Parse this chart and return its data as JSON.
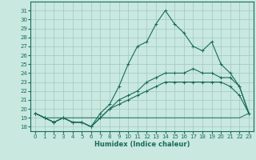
{
  "title": "",
  "xlabel": "Humidex (Indice chaleur)",
  "x": [
    0,
    1,
    2,
    3,
    4,
    5,
    6,
    7,
    8,
    9,
    10,
    11,
    12,
    13,
    14,
    15,
    16,
    17,
    18,
    19,
    20,
    21,
    22,
    23
  ],
  "line1": [
    19.5,
    19.0,
    18.5,
    19.0,
    18.5,
    18.5,
    18.0,
    19.5,
    20.5,
    22.5,
    25.0,
    27.0,
    27.5,
    29.5,
    31.0,
    29.5,
    28.5,
    27.0,
    26.5,
    27.5,
    25.0,
    24.0,
    22.5,
    19.5
  ],
  "line2": [
    19.5,
    19.0,
    18.5,
    19.0,
    18.5,
    18.5,
    18.0,
    19.0,
    20.0,
    21.0,
    21.5,
    22.0,
    23.0,
    23.5,
    24.0,
    24.0,
    24.0,
    24.5,
    24.0,
    24.0,
    23.5,
    23.5,
    22.5,
    19.5
  ],
  "line3": [
    19.5,
    19.0,
    18.5,
    19.0,
    18.5,
    18.5,
    18.0,
    19.0,
    20.0,
    20.5,
    21.0,
    21.5,
    22.0,
    22.5,
    23.0,
    23.0,
    23.0,
    23.0,
    23.0,
    23.0,
    23.0,
    22.5,
    21.5,
    19.5
  ],
  "line4": [
    19.5,
    19.0,
    19.0,
    19.0,
    19.0,
    19.0,
    19.0,
    19.0,
    19.0,
    19.0,
    19.0,
    19.0,
    19.0,
    19.0,
    19.0,
    19.0,
    19.0,
    19.0,
    19.0,
    19.0,
    19.0,
    19.0,
    19.0,
    19.5
  ],
  "line_color": "#1a6b5a",
  "bg_color": "#c8e8e0",
  "grid_color": "#a0c8c0",
  "ylim": [
    17.5,
    32.0
  ],
  "xlim": [
    -0.5,
    23.5
  ],
  "yticks": [
    18,
    19,
    20,
    21,
    22,
    23,
    24,
    25,
    26,
    27,
    28,
    29,
    30,
    31
  ],
  "xticks": [
    0,
    1,
    2,
    3,
    4,
    5,
    6,
    7,
    8,
    9,
    10,
    11,
    12,
    13,
    14,
    15,
    16,
    17,
    18,
    19,
    20,
    21,
    22,
    23
  ]
}
